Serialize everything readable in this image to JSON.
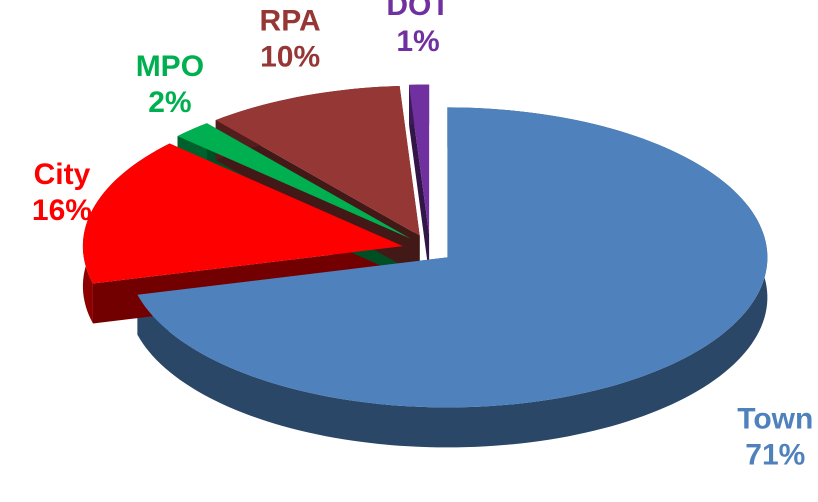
{
  "chart_data": {
    "type": "pie",
    "categories": [
      "Town",
      "City",
      "MPO",
      "RPA",
      "DOT"
    ],
    "values": [
      71,
      16,
      2,
      10,
      1
    ],
    "value_labels": [
      "71%",
      "16%",
      "2%",
      "10%",
      "1%"
    ],
    "colors": [
      "#4f81bd",
      "#ff0000",
      "#00b050",
      "#953735",
      "#7030a0"
    ],
    "start_angle": 0,
    "direction": "clockwise"
  }
}
